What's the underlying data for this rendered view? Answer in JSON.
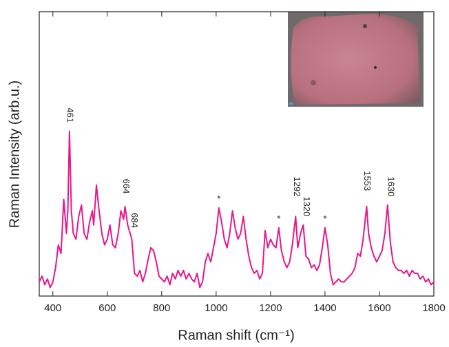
{
  "chart_data": {
    "type": "line",
    "x_label": "Raman shift (cm⁻¹)",
    "y_label": "Raman Intensity (arb.u.)",
    "color": "#e8168a",
    "xlim": [
      350,
      1800
    ],
    "ylim": [
      0,
      100
    ],
    "xticks": [
      400,
      600,
      800,
      1000,
      1200,
      1400,
      1600,
      1800
    ],
    "x": [
      350,
      360,
      370,
      380,
      390,
      400,
      410,
      420,
      430,
      440,
      450,
      455,
      461,
      468,
      475,
      485,
      495,
      505,
      515,
      525,
      535,
      545,
      550,
      560,
      570,
      580,
      590,
      600,
      610,
      620,
      630,
      640,
      650,
      660,
      665,
      675,
      690,
      700,
      710,
      720,
      730,
      740,
      750,
      760,
      770,
      780,
      790,
      800,
      810,
      820,
      830,
      840,
      850,
      860,
      870,
      880,
      890,
      900,
      910,
      920,
      930,
      940,
      950,
      960,
      970,
      980,
      990,
      1000,
      1010,
      1020,
      1030,
      1040,
      1050,
      1060,
      1070,
      1080,
      1090,
      1100,
      1110,
      1120,
      1130,
      1140,
      1150,
      1160,
      1170,
      1180,
      1190,
      1200,
      1210,
      1220,
      1230,
      1240,
      1250,
      1260,
      1270,
      1280,
      1292,
      1300,
      1310,
      1320,
      1330,
      1340,
      1350,
      1360,
      1370,
      1380,
      1390,
      1400,
      1410,
      1420,
      1430,
      1440,
      1450,
      1460,
      1470,
      1480,
      1490,
      1500,
      1510,
      1520,
      1530,
      1540,
      1553,
      1560,
      1570,
      1580,
      1590,
      1600,
      1610,
      1620,
      1630,
      1640,
      1650,
      1660,
      1670,
      1680,
      1690,
      1700,
      1710,
      1720,
      1730,
      1740,
      1750,
      1760,
      1770,
      1780,
      1790,
      1800
    ],
    "values": [
      5,
      7,
      4,
      6,
      3,
      5,
      10,
      18,
      15,
      34,
      22,
      30,
      58,
      30,
      22,
      20,
      28,
      32,
      22,
      20,
      26,
      30,
      25,
      39,
      30,
      22,
      18,
      20,
      25,
      18,
      17,
      22,
      30,
      27,
      31.5,
      25,
      20,
      8,
      7,
      9,
      5,
      8,
      13,
      17,
      16,
      12,
      7,
      6,
      5,
      7,
      4,
      8,
      6,
      9,
      7,
      9,
      6,
      8,
      6,
      5,
      8,
      3,
      5,
      12,
      15,
      12,
      17,
      22,
      31,
      26,
      20,
      17,
      22,
      30,
      24,
      20,
      22,
      28,
      20,
      14,
      10,
      8,
      9,
      6,
      8,
      23,
      17,
      20,
      18,
      17,
      24,
      16,
      12,
      10,
      12,
      18,
      28,
      17,
      22,
      25,
      14,
      13,
      10,
      11,
      9,
      11,
      17,
      24,
      18,
      8,
      4,
      5,
      6,
      5,
      5,
      6,
      7,
      8,
      10,
      15,
      14,
      20,
      31.5,
      22,
      17,
      14,
      12,
      14,
      16,
      22,
      32,
      19,
      12,
      10,
      9,
      9,
      8,
      9,
      7,
      9,
      8,
      8,
      6,
      7,
      5,
      6,
      4,
      5
    ],
    "annotations": [
      {
        "text": "461",
        "x": 461,
        "y": 61,
        "rotated": true
      },
      {
        "text": "664",
        "x": 668,
        "y": 36,
        "rotated": true
      },
      {
        "text": "684",
        "x": 698,
        "y": 24,
        "rotated": true
      },
      {
        "text": "*",
        "x": 1010,
        "y": 34,
        "rotated": false
      },
      {
        "text": "*",
        "x": 1230,
        "y": 27,
        "rotated": false
      },
      {
        "text": "*",
        "x": 1400,
        "y": 27,
        "rotated": false
      },
      {
        "text": "1292",
        "x": 1295,
        "y": 35,
        "rotated": true
      },
      {
        "text": "1320",
        "x": 1330,
        "y": 28,
        "rotated": true
      },
      {
        "text": "1553",
        "x": 1553,
        "y": 37,
        "rotated": true
      },
      {
        "text": "1630",
        "x": 1640,
        "y": 35,
        "rotated": true
      }
    ]
  }
}
